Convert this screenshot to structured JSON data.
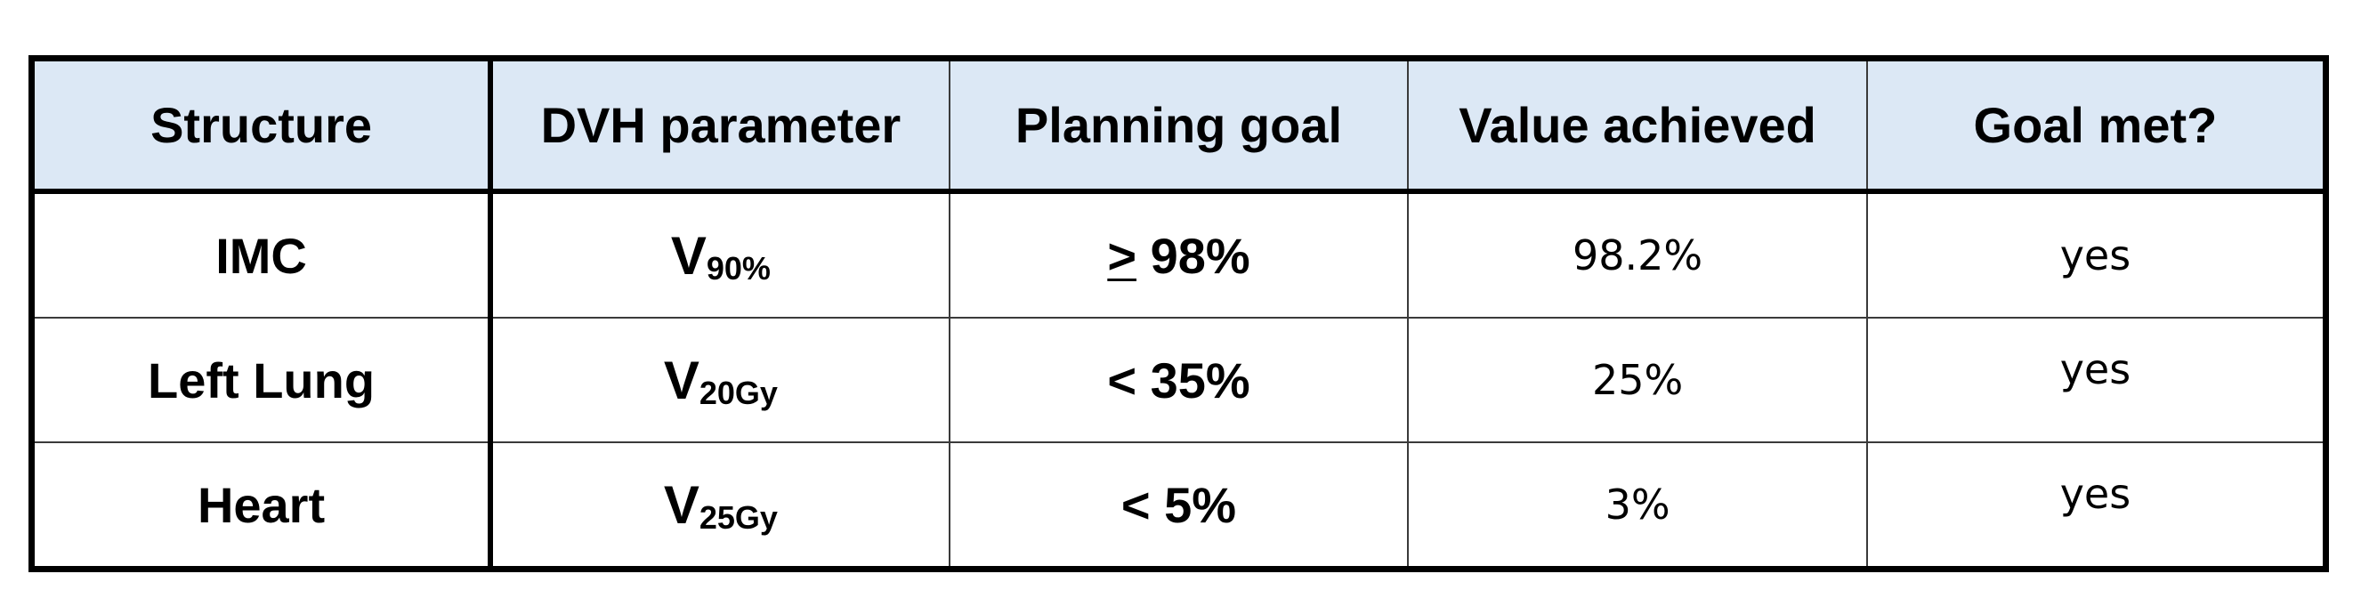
{
  "table": {
    "headers": [
      "Structure",
      "DVH parameter",
      "Planning goal",
      "Value achieved",
      "Goal met?"
    ],
    "rows": [
      {
        "structure": "IMC",
        "parameter": {
          "symbol": "V",
          "subscript": "90%"
        },
        "goal": {
          "operator": ">",
          "value": " 98%"
        },
        "achieved": "98.2%",
        "met": "yes"
      },
      {
        "structure": "Left Lung",
        "parameter": {
          "symbol": "V",
          "subscript": "20Gy"
        },
        "goal": {
          "operator": "<",
          "value": " 35%"
        },
        "achieved": "25%",
        "met": "yes"
      },
      {
        "structure": "Heart",
        "parameter": {
          "symbol": "V",
          "subscript": "25Gy"
        },
        "goal": {
          "operator": "<",
          "value": " 5%"
        },
        "achieved": "3%",
        "met": "yes"
      }
    ]
  }
}
